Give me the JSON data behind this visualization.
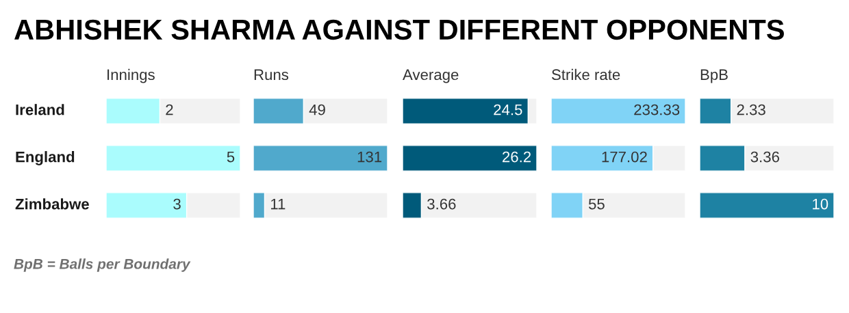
{
  "chart_data": [
    {
      "type": "other",
      "title": "ABHISHEK SHARMA AGAINST DIFFERENT OPPONENTS",
      "annotations": [
        "BpB = Balls per Boundary"
      ]
    },
    {
      "type": "bar",
      "orientation": "horizontal",
      "title": "Innings",
      "categories": [
        "Ireland",
        "England",
        "Zimbabwe"
      ],
      "values": [
        2,
        5,
        3
      ],
      "color": "#aafcfd",
      "xlim": [
        0,
        5
      ],
      "data_labels": true
    },
    {
      "type": "bar",
      "orientation": "horizontal",
      "title": "Runs",
      "categories": [
        null,
        null,
        null
      ],
      "values": [
        49,
        131,
        11
      ],
      "color": "#50a9cc",
      "xlim": [
        0,
        131
      ],
      "data_labels": true
    },
    {
      "type": "bar",
      "orientation": "horizontal",
      "title": "Average",
      "categories": [
        null,
        null,
        null
      ],
      "values": [
        24.5,
        26.2,
        3.66
      ],
      "color": "#005a7a",
      "xlim": [
        0,
        26.2
      ],
      "data_labels": true
    },
    {
      "type": "bar",
      "orientation": "horizontal",
      "title": "Strike rate",
      "categories": [
        null,
        null,
        null
      ],
      "values": [
        233.33,
        177.02,
        55
      ],
      "color": "#80d3f6",
      "xlim": [
        0,
        233.33
      ],
      "data_labels": true
    },
    {
      "type": "bar",
      "orientation": "horizontal",
      "title": "BpB",
      "categories": [
        null,
        null,
        null
      ],
      "values": [
        2.33,
        3.36,
        10
      ],
      "color": "#1e82a3",
      "xlim": [
        0,
        10
      ],
      "data_labels": true
    }
  ]
}
